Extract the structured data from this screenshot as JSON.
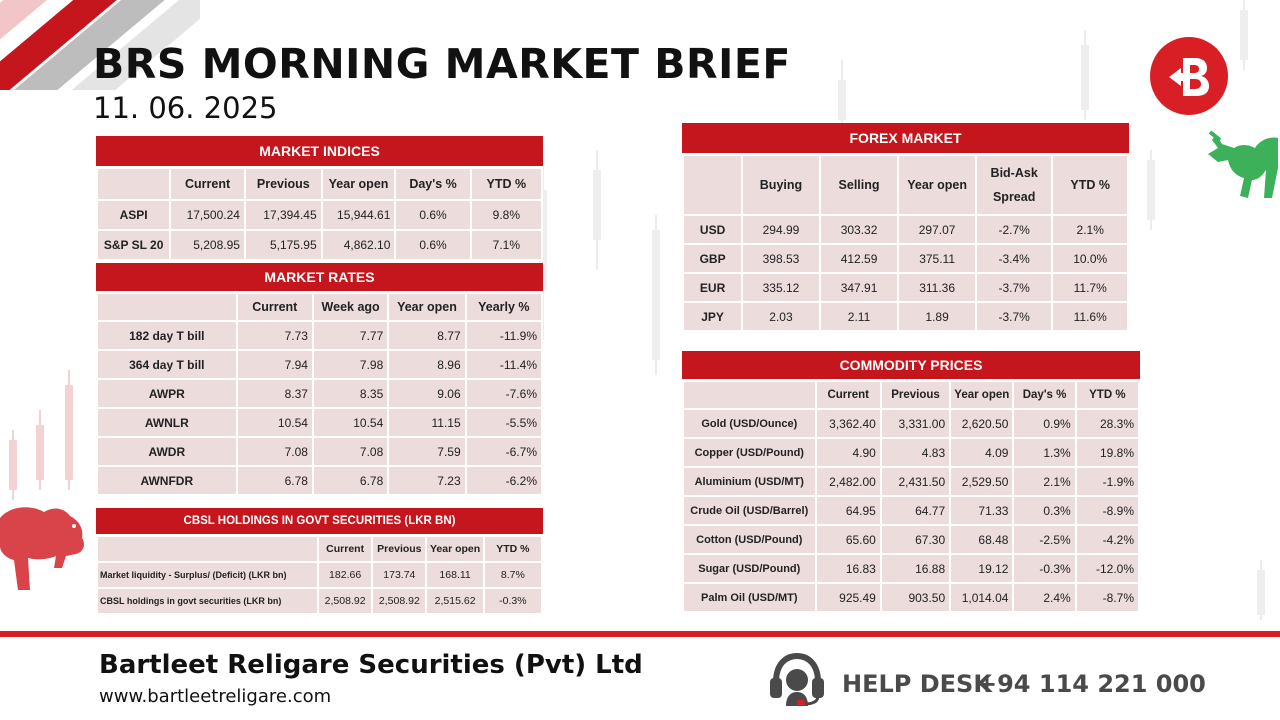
{
  "header": {
    "title": "BRS MORNING MARKET BRIEF",
    "date": "11. 06. 2025"
  },
  "market_indices": {
    "title": "MARKET INDICES",
    "columns": [
      "",
      "Current",
      "Previous",
      "Year open",
      "Day's %",
      "YTD %"
    ],
    "rows": [
      {
        "label": "ASPI",
        "values": [
          "17,500.24",
          "17,394.45",
          "15,944.61",
          "0.6%",
          "9.8%"
        ]
      },
      {
        "label": "S&P SL 20",
        "values": [
          "5,208.95",
          "5,175.95",
          "4,862.10",
          "0.6%",
          "7.1%"
        ]
      }
    ]
  },
  "market_rates": {
    "title": "MARKET RATES",
    "columns": [
      "",
      "Current",
      "Week ago",
      "Year open",
      "Yearly %"
    ],
    "rows": [
      {
        "label": "182 day T bill",
        "values": [
          "7.73",
          "7.77",
          "8.77",
          "-11.9%"
        ]
      },
      {
        "label": "364 day T bill",
        "values": [
          "7.94",
          "7.98",
          "8.96",
          "-11.4%"
        ]
      },
      {
        "label": "AWPR",
        "values": [
          "8.37",
          "8.35",
          "9.06",
          "-7.6%"
        ]
      },
      {
        "label": "AWNLR",
        "values": [
          "10.54",
          "10.54",
          "11.15",
          "-5.5%"
        ]
      },
      {
        "label": "AWDR",
        "values": [
          "7.08",
          "7.08",
          "7.59",
          "-6.7%"
        ]
      },
      {
        "label": "AWNFDR",
        "values": [
          "6.78",
          "6.78",
          "7.23",
          "-6.2%"
        ]
      }
    ]
  },
  "cbsl_holdings": {
    "title": "CBSL HOLDINGS IN GOVT SECURITIES (LKR BN)",
    "columns": [
      "",
      "Current",
      "Previous",
      "Year open",
      "YTD %"
    ],
    "rows": [
      {
        "label": "Market liquidity - Surplus/ (Deficit) (LKR bn)",
        "values": [
          "182.66",
          "173.74",
          "168.11",
          "8.7%"
        ]
      },
      {
        "label": "CBSL holdings in govt securities (LKR bn)",
        "values": [
          "2,508.92",
          "2,508.92",
          "2,515.62",
          "-0.3%"
        ]
      }
    ]
  },
  "forex_market": {
    "title": "FOREX MARKET",
    "columns": [
      "",
      "Buying",
      "Selling",
      "Year open",
      "Bid-Ask Spread",
      "YTD %"
    ],
    "rows": [
      {
        "label": "USD",
        "values": [
          "294.99",
          "303.32",
          "297.07",
          "-2.7%",
          "2.1%"
        ]
      },
      {
        "label": "GBP",
        "values": [
          "398.53",
          "412.59",
          "375.11",
          "-3.4%",
          "10.0%"
        ]
      },
      {
        "label": "EUR",
        "values": [
          "335.12",
          "347.91",
          "311.36",
          "-3.7%",
          "11.7%"
        ]
      },
      {
        "label": "JPY",
        "values": [
          "2.03",
          "2.11",
          "1.89",
          "-3.7%",
          "11.6%"
        ]
      }
    ]
  },
  "commodity_prices": {
    "title": "COMMODITY PRICES",
    "columns": [
      "",
      "Current",
      "Previous",
      "Year open",
      "Day's %",
      "YTD %"
    ],
    "rows": [
      {
        "label": "Gold (USD/Ounce)",
        "values": [
          "3,362.40",
          "3,331.00",
          "2,620.50",
          "0.9%",
          "28.3%"
        ]
      },
      {
        "label": "Copper (USD/Pound)",
        "values": [
          "4.90",
          "4.83",
          "4.09",
          "1.3%",
          "19.8%"
        ]
      },
      {
        "label": "Aluminium (USD/MT)",
        "values": [
          "2,482.00",
          "2,431.50",
          "2,529.50",
          "2.1%",
          "-1.9%"
        ]
      },
      {
        "label": "Crude Oil (USD/Barrel)",
        "values": [
          "64.95",
          "64.77",
          "71.33",
          "0.3%",
          "-8.9%"
        ]
      },
      {
        "label": "Cotton (USD/Pound)",
        "values": [
          "65.60",
          "67.30",
          "68.48",
          "-2.5%",
          "-4.2%"
        ]
      },
      {
        "label": "Sugar (USD/Pound)",
        "values": [
          "16.83",
          "16.88",
          "19.12",
          "-0.3%",
          "-12.0%"
        ]
      },
      {
        "label": "Palm Oil (USD/MT)",
        "values": [
          "925.49",
          "903.50",
          "1,014.04",
          "2.4%",
          "-8.7%"
        ]
      }
    ]
  },
  "footer": {
    "company": "Bartleet Religare Securities (Pvt) Ltd",
    "website": "www.bartleetreligare.com",
    "help_label": "HELP DESK",
    "help_phone": "+94 114 221 000"
  },
  "colors": {
    "accent_red": "#c4161c",
    "cell_bg": "#ecdcdc",
    "bull_green": "#3cb15a",
    "bear_red": "#d9434a"
  },
  "icons": [
    "brs-logo-icon",
    "bull-icon",
    "bear-icon",
    "headset-icon"
  ]
}
